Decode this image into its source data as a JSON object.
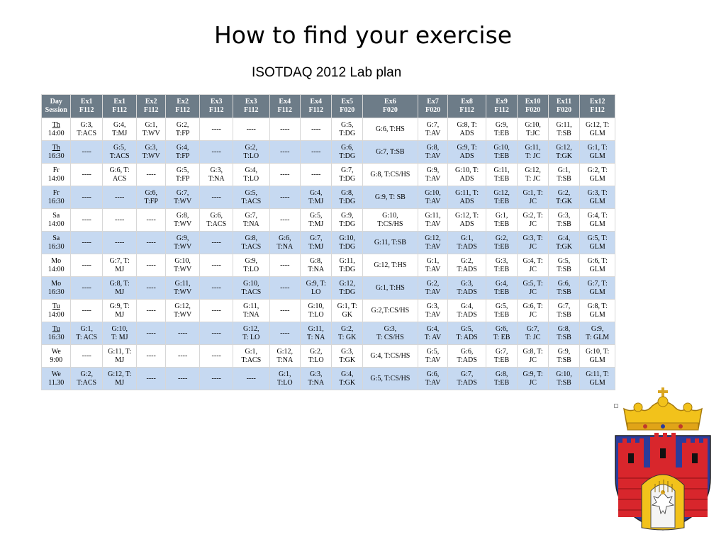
{
  "slide": {
    "title": "How to find your exercise",
    "subtitle": "ISOTDAQ 2012 Lab plan"
  },
  "table": {
    "headers": [
      [
        "Day",
        "Session"
      ],
      [
        "Ex1",
        "F112"
      ],
      [
        "Ex1",
        "F112"
      ],
      [
        "Ex2",
        "F112"
      ],
      [
        "Ex2",
        "F112"
      ],
      [
        "Ex3",
        "F112"
      ],
      [
        "Ex3",
        "F112"
      ],
      [
        "Ex4",
        "F112"
      ],
      [
        "Ex4",
        "F112"
      ],
      [
        "Ex5",
        "F020"
      ],
      [
        "Ex6",
        "F020"
      ],
      [
        "Ex7",
        "F020"
      ],
      [
        "Ex8",
        "F112"
      ],
      [
        "Ex9",
        "F112"
      ],
      [
        "Ex10",
        "F020"
      ],
      [
        "Ex11",
        "F020"
      ],
      [
        "Ex12",
        "F112"
      ]
    ],
    "rows": [
      [
        [
          "Th",
          "14:00"
        ],
        [
          "G:3,",
          "T:ACS"
        ],
        [
          "G:4,",
          "T:MJ"
        ],
        [
          "G:1,",
          "T:WV"
        ],
        [
          "G:2,",
          "T:FP"
        ],
        [
          "----"
        ],
        [
          "----"
        ],
        [
          "----"
        ],
        [
          "----"
        ],
        [
          "G:5,",
          "T:DG"
        ],
        [
          "G:6, T:HS"
        ],
        [
          "G:7,",
          "T:AV"
        ],
        [
          "G:8, T:",
          "ADS"
        ],
        [
          "G:9,",
          "T:EB"
        ],
        [
          "G:10,",
          "T:JC"
        ],
        [
          "G:11,",
          "T:SB"
        ],
        [
          "G:12, T:",
          "GLM"
        ]
      ],
      [
        [
          "Th",
          "16:30"
        ],
        [
          "----"
        ],
        [
          "G:5,",
          "T:ACS"
        ],
        [
          "G:3,",
          "T:WV"
        ],
        [
          "G:4,",
          "T:FP"
        ],
        [
          "----"
        ],
        [
          "G:2,",
          "T:LO"
        ],
        [
          "----"
        ],
        [
          "----"
        ],
        [
          "G:6,",
          "T:DG"
        ],
        [
          "G:7, T:SB"
        ],
        [
          "G:8,",
          "T:AV"
        ],
        [
          "G:9, T:",
          "ADS"
        ],
        [
          "G:10,",
          "T:EB"
        ],
        [
          "G:11,",
          "T: JC"
        ],
        [
          "G:12,",
          "T:GK"
        ],
        [
          "G:1, T:",
          "GLM"
        ]
      ],
      [
        [
          "Fr",
          "14:00"
        ],
        [
          "----"
        ],
        [
          "G:6, T:",
          "ACS"
        ],
        [
          "----"
        ],
        [
          "G:5,",
          "T:FP"
        ],
        [
          "G:3,",
          "T:NA"
        ],
        [
          "G:4,",
          "T:LO"
        ],
        [
          "----"
        ],
        [
          "----"
        ],
        [
          "G:7,",
          "T:DG"
        ],
        [
          "G:8, T:CS/HS"
        ],
        [
          "G:9,",
          "T:AV"
        ],
        [
          "G:10, T:",
          "ADS"
        ],
        [
          "G:11,",
          "T:EB"
        ],
        [
          "G:12,",
          "T: JC"
        ],
        [
          "G:1,",
          "T:SB"
        ],
        [
          "G:2, T:",
          "GLM"
        ]
      ],
      [
        [
          "Fr",
          "16:30"
        ],
        [
          "----"
        ],
        [
          "----"
        ],
        [
          "G:6,",
          "T:FP"
        ],
        [
          "G:7,",
          "T:WV"
        ],
        [
          "----"
        ],
        [
          "G:5,",
          "T:ACS"
        ],
        [
          "----"
        ],
        [
          "G:4,",
          "T:MJ"
        ],
        [
          "G:8,",
          "T:DG"
        ],
        [
          "G:9, T: SB"
        ],
        [
          "G:10,",
          "T:AV"
        ],
        [
          "G:11, T:",
          "ADS"
        ],
        [
          "G:12,",
          "T:EB"
        ],
        [
          "G:1, T:",
          "JC"
        ],
        [
          "G:2,",
          "T:GK"
        ],
        [
          "G:3, T:",
          "GLM"
        ]
      ],
      [
        [
          "Sa",
          "14:00"
        ],
        [
          "----"
        ],
        [
          "----"
        ],
        [
          "----"
        ],
        [
          "G:8,",
          "T:WV"
        ],
        [
          "G:6,",
          "T:ACS"
        ],
        [
          "G:7,",
          "T:NA"
        ],
        [
          "----"
        ],
        [
          "G:5,",
          "T:MJ"
        ],
        [
          "G:9,",
          "T:DG"
        ],
        [
          "G:10,",
          "T:CS/HS"
        ],
        [
          "G:11,",
          "T:AV"
        ],
        [
          "G:12, T:",
          "ADS"
        ],
        [
          "G:1,",
          "T:EB"
        ],
        [
          "G:2, T:",
          "JC"
        ],
        [
          "G:3,",
          "T:SB"
        ],
        [
          "G:4, T:",
          "GLM"
        ]
      ],
      [
        [
          "Sa",
          "16:30"
        ],
        [
          "----"
        ],
        [
          "----"
        ],
        [
          "----"
        ],
        [
          "G:9,",
          "T:WV"
        ],
        [
          "----"
        ],
        [
          "G:8,",
          "T:ACS"
        ],
        [
          "G:6,",
          "T:NA"
        ],
        [
          "G:7,",
          "T:MJ"
        ],
        [
          "G:10,",
          "T:DG"
        ],
        [
          "G:11, T:SB"
        ],
        [
          "G:12,",
          "T:AV"
        ],
        [
          "G:1,",
          "T:ADS"
        ],
        [
          "G:2,",
          "T:EB"
        ],
        [
          "G:3, T:",
          "JC"
        ],
        [
          "G:4,",
          "T:GK"
        ],
        [
          "G:5, T:",
          "GLM"
        ]
      ],
      [
        [
          "Mo",
          "14:00"
        ],
        [
          "----"
        ],
        [
          "G:7, T:",
          "MJ"
        ],
        [
          "----"
        ],
        [
          "G:10,",
          "T:WV"
        ],
        [
          "----"
        ],
        [
          "G:9,",
          "T:LO"
        ],
        [
          "----"
        ],
        [
          "G:8,",
          "T:NA"
        ],
        [
          "G:11,",
          "T:DG"
        ],
        [
          "G:12, T:HS"
        ],
        [
          "G:1,",
          "T:AV"
        ],
        [
          "G:2,",
          "T:ADS"
        ],
        [
          "G:3,",
          "T:EB"
        ],
        [
          "G:4, T:",
          "JC"
        ],
        [
          "G:5,",
          "T:SB"
        ],
        [
          "G:6, T:",
          "GLM"
        ]
      ],
      [
        [
          "Mo",
          "16:30"
        ],
        [
          "----"
        ],
        [
          "G:8, T:",
          "MJ"
        ],
        [
          "----"
        ],
        [
          "G:11,",
          "T:WV"
        ],
        [
          "----"
        ],
        [
          "G:10,",
          "T:ACS"
        ],
        [
          "----"
        ],
        [
          "G:9, T:",
          "LO"
        ],
        [
          "G:12,",
          "T:DG"
        ],
        [
          "G:1, T:HS"
        ],
        [
          "G:2,",
          "T:AV"
        ],
        [
          "G:3,",
          "T:ADS"
        ],
        [
          "G:4,",
          "T:EB"
        ],
        [
          "G:5, T:",
          "JC"
        ],
        [
          "G:6,",
          "T:SB"
        ],
        [
          "G:7, T:",
          "GLM"
        ]
      ],
      [
        [
          "Tu",
          "14:00"
        ],
        [
          "----"
        ],
        [
          "G:9, T:",
          "MJ"
        ],
        [
          "----"
        ],
        [
          "G:12,",
          "T:WV"
        ],
        [
          "----"
        ],
        [
          "G:11,",
          "T:NA"
        ],
        [
          "----"
        ],
        [
          "G:10,",
          "T:LO"
        ],
        [
          "G:1, T:",
          "GK"
        ],
        [
          "G:2,T:CS/HS"
        ],
        [
          "G:3,",
          "T:AV"
        ],
        [
          "G:4,",
          "T:ADS"
        ],
        [
          "G:5,",
          "T:EB"
        ],
        [
          "G:6, T:",
          "JC"
        ],
        [
          "G:7,",
          "T:SB"
        ],
        [
          "G:8, T:",
          "GLM"
        ]
      ],
      [
        [
          "Tu",
          "16:30"
        ],
        [
          "G:1,",
          "T: ACS"
        ],
        [
          "G:10,",
          "T: MJ"
        ],
        [
          "----"
        ],
        [
          "----"
        ],
        [
          "----"
        ],
        [
          "G:12,",
          "T: LO"
        ],
        [
          "----"
        ],
        [
          "G:11,",
          "T: NA"
        ],
        [
          "G:2,",
          "T: GK"
        ],
        [
          "G:3,",
          "T: CS/HS"
        ],
        [
          "G:4,",
          "T: AV"
        ],
        [
          "G:5,",
          "T: ADS"
        ],
        [
          "G:6,",
          "T: EB"
        ],
        [
          "G:7,",
          "T: JC"
        ],
        [
          "G:8,",
          "T:SB"
        ],
        [
          "G:9,",
          "T: GLM"
        ]
      ],
      [
        [
          "We",
          "9:00"
        ],
        [
          "----"
        ],
        [
          "G:11, T:",
          "MJ"
        ],
        [
          "----"
        ],
        [
          "----"
        ],
        [
          "----"
        ],
        [
          "G:1,",
          "T:ACS"
        ],
        [
          "G:12,",
          "T:NA"
        ],
        [
          "G:2,",
          "T:LO"
        ],
        [
          "G:3,",
          "T:GK"
        ],
        [
          "G:4, T:CS/HS"
        ],
        [
          "G:5,",
          "T:AV"
        ],
        [
          "G:6,",
          "T:ADS"
        ],
        [
          "G:7,",
          "T:EB"
        ],
        [
          "G:8, T:",
          "JC"
        ],
        [
          "G:9,",
          "T:SB"
        ],
        [
          "G:10, T:",
          "GLM"
        ]
      ],
      [
        [
          "We",
          "11.30"
        ],
        [
          "G:2,",
          "T:ACS"
        ],
        [
          "G:12, T:",
          "MJ"
        ],
        [
          "----"
        ],
        [
          "----"
        ],
        [
          "----"
        ],
        [
          "----"
        ],
        [
          "G:1,",
          "T:LO"
        ],
        [
          "G:3,",
          "T:NA"
        ],
        [
          "G:4,",
          "T:GK"
        ],
        [
          "G:5, T:CS/HS"
        ],
        [
          "G:6,",
          "T:AV"
        ],
        [
          "G:7,",
          "T:ADS"
        ],
        [
          "G:8,",
          "T:EB"
        ],
        [
          "G:9, T:",
          "JC"
        ],
        [
          "G:10,",
          "T:SB"
        ],
        [
          "G:11, T:",
          "GLM"
        ]
      ]
    ],
    "underlined_days": [
      "Th",
      "Tu"
    ]
  },
  "colors": {
    "header_bg": "#6d7c88",
    "row_alt_bg": "#c6d9f1",
    "crest_red": "#d8262c",
    "crest_blue": "#2b3c9b",
    "crest_gold": "#f2c21b"
  },
  "logo": {
    "icon": "krakow-coat-of-arms-icon"
  }
}
